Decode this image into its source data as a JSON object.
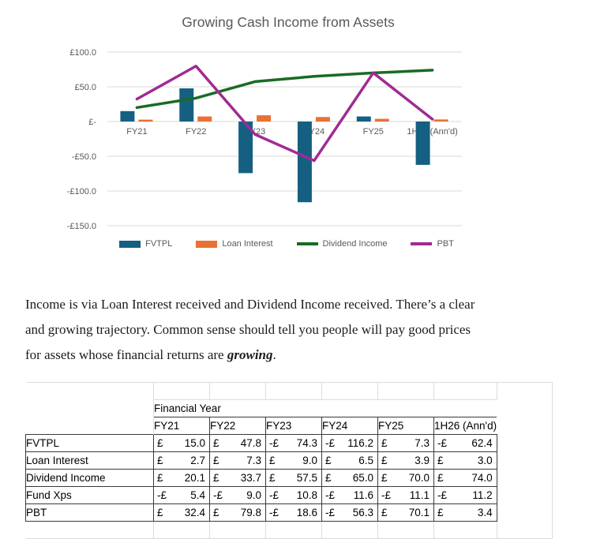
{
  "chart": {
    "title": "Growing Cash Income from Assets"
  },
  "chart_data": {
    "type": "combo-bar-line",
    "title": "Growing Cash Income from Assets",
    "categories": [
      "FY21",
      "FY22",
      "FY23",
      "FY24",
      "FY25",
      "1H26 (Ann'd)"
    ],
    "series": [
      {
        "name": "FVTPL",
        "render": "bar",
        "color": "#156082",
        "values": [
          15.0,
          47.8,
          -74.3,
          -116.2,
          7.3,
          -62.4
        ]
      },
      {
        "name": "Loan Interest",
        "render": "bar",
        "color": "#E97132",
        "values": [
          2.7,
          7.3,
          9.0,
          6.5,
          3.9,
          3.0
        ]
      },
      {
        "name": "Dividend Income",
        "render": "line",
        "color": "#196B24",
        "values": [
          20.1,
          33.7,
          57.5,
          65.0,
          70.0,
          74.0
        ]
      },
      {
        "name": "PBT",
        "render": "line",
        "color": "#A02B93",
        "values": [
          32.4,
          79.8,
          -18.6,
          -56.3,
          70.1,
          3.4
        ]
      }
    ],
    "y_ticks": [
      {
        "value": 100,
        "label": "£100.0"
      },
      {
        "value": 50,
        "label": "£50.0"
      },
      {
        "value": 0,
        "label": "£-"
      },
      {
        "value": -50,
        "label": "-£50.0"
      },
      {
        "value": -100,
        "label": "-£100.0"
      },
      {
        "value": -150,
        "label": "-£150.0"
      }
    ],
    "ylim": [
      -150,
      100
    ],
    "grid": true,
    "legend_position": "bottom",
    "colors": {
      "axis_text": "#595959",
      "gridline": "#D9D9D9"
    }
  },
  "paragraph": {
    "line1": "Income is via Loan Interest received and Dividend Income received. There’s a clear",
    "line2": "and growing trajectory. Common sense should tell you people will pay good prices",
    "line3_before": "for assets whose financial returns are ",
    "line3_emphasis": "growing",
    "line3_after": "."
  },
  "table": {
    "group_header": "Financial Year",
    "columns": [
      "FY21",
      "FY22",
      "FY23",
      "FY24",
      "FY25",
      "1H26 (Ann'd)"
    ],
    "rows": [
      {
        "label": "FVTPL",
        "cells": [
          {
            "cur": "£",
            "num": "15.0"
          },
          {
            "cur": "£",
            "num": "47.8"
          },
          {
            "cur": "-£",
            "num": "74.3"
          },
          {
            "cur": "-£",
            "num": "116.2"
          },
          {
            "cur": "£",
            "num": "7.3"
          },
          {
            "cur": "-£",
            "num": "62.4"
          }
        ]
      },
      {
        "label": "Loan Interest",
        "cells": [
          {
            "cur": "£",
            "num": "2.7"
          },
          {
            "cur": "£",
            "num": "7.3"
          },
          {
            "cur": "£",
            "num": "9.0"
          },
          {
            "cur": "£",
            "num": "6.5"
          },
          {
            "cur": "£",
            "num": "3.9"
          },
          {
            "cur": "£",
            "num": "3.0"
          }
        ]
      },
      {
        "label": "Dividend Income",
        "cells": [
          {
            "cur": "£",
            "num": "20.1"
          },
          {
            "cur": "£",
            "num": "33.7"
          },
          {
            "cur": "£",
            "num": "57.5"
          },
          {
            "cur": "£",
            "num": "65.0"
          },
          {
            "cur": "£",
            "num": "70.0"
          },
          {
            "cur": "£",
            "num": "74.0"
          }
        ]
      },
      {
        "label": "Fund Xps",
        "cells": [
          {
            "cur": "-£",
            "num": "5.4"
          },
          {
            "cur": "-£",
            "num": "9.0"
          },
          {
            "cur": "-£",
            "num": "10.8"
          },
          {
            "cur": "-£",
            "num": "11.6"
          },
          {
            "cur": "-£",
            "num": "11.1"
          },
          {
            "cur": "-£",
            "num": "11.2"
          }
        ]
      },
      {
        "label": "PBT",
        "cells": [
          {
            "cur": "£",
            "num": "32.4"
          },
          {
            "cur": "£",
            "num": "79.8"
          },
          {
            "cur": "-£",
            "num": "18.6"
          },
          {
            "cur": "-£",
            "num": "56.3"
          },
          {
            "cur": "£",
            "num": "70.1"
          },
          {
            "cur": "£",
            "num": "3.4"
          }
        ]
      }
    ]
  }
}
